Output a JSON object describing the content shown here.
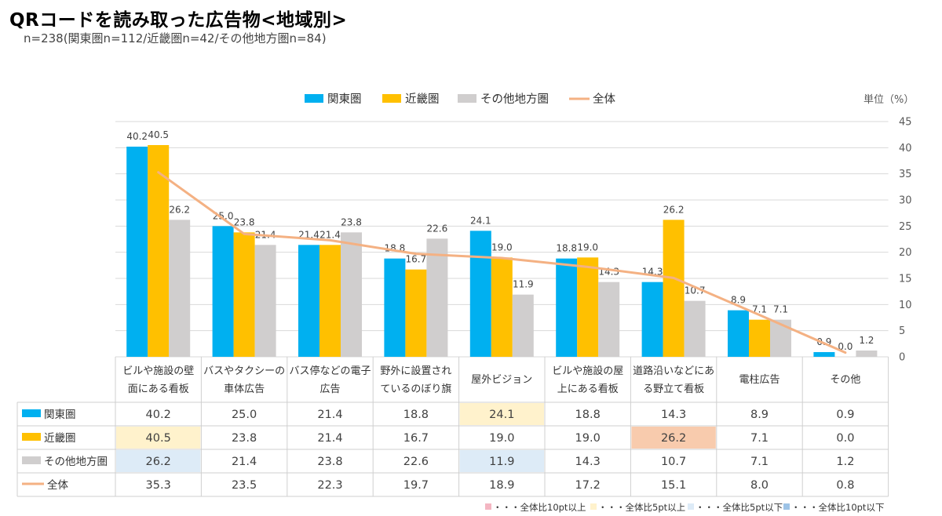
{
  "title": "QRコードを読み取った広告物<地域別>",
  "subtitle": "n=238(関東圏n=112/近畿圏n=42/その他地方圏n=84)",
  "chart_data": {
    "type": "bar",
    "unit_label": "単位（%）",
    "categories": [
      [
        "ビルや施設の壁",
        "面にある看板"
      ],
      [
        "バスやタクシーの",
        "車体広告"
      ],
      [
        "バス停などの電子",
        "広告"
      ],
      [
        "野外に設置され",
        "ているのぼり旗"
      ],
      [
        "屋外ビジョン"
      ],
      [
        "ビルや施設の屋",
        "上にある看板"
      ],
      [
        "道路沿いなどにあ",
        "る野立て看板"
      ],
      [
        "電柱広告"
      ],
      [
        "その他"
      ]
    ],
    "series": [
      {
        "name": "関東圏",
        "type": "bar",
        "color": "#00B0F0",
        "values": [
          40.2,
          25.0,
          21.4,
          18.8,
          24.1,
          18.8,
          14.3,
          8.9,
          0.9
        ]
      },
      {
        "name": "近畿圏",
        "type": "bar",
        "color": "#FFC000",
        "values": [
          40.5,
          23.8,
          21.4,
          16.7,
          19.0,
          19.0,
          26.2,
          7.1,
          0.0
        ]
      },
      {
        "name": "その他地方圏",
        "type": "bar",
        "color": "#D0CECE",
        "values": [
          26.2,
          21.4,
          23.8,
          22.6,
          11.9,
          14.3,
          10.7,
          7.1,
          1.2
        ]
      },
      {
        "name": "全体",
        "type": "line",
        "color": "#F4B183",
        "values": [
          35.3,
          23.5,
          22.3,
          19.7,
          18.9,
          17.2,
          15.1,
          8.0,
          0.8
        ]
      }
    ],
    "ylim": [
      0,
      45
    ],
    "yticks": [
      0,
      5,
      10,
      15,
      20,
      25,
      30,
      35,
      40,
      45
    ],
    "y_axis_side": "right",
    "grid": true,
    "legend_position": "top",
    "data_table": true,
    "highlights": [
      {
        "series": 0,
        "index": 4,
        "color": "#FFF2CC"
      },
      {
        "series": 1,
        "index": 0,
        "color": "#FFF2CC"
      },
      {
        "series": 1,
        "index": 6,
        "color": "#F8CBAD"
      },
      {
        "series": 2,
        "index": 0,
        "color": "#DDEBF7"
      },
      {
        "series": 2,
        "index": 4,
        "color": "#DDEBF7"
      }
    ],
    "highlight_legend": [
      {
        "color": "#F4B6C2",
        "label": "・・・全体比10pt以上"
      },
      {
        "color": "#FFF2CC",
        "label": "・・・全体比5pt以上"
      },
      {
        "color": "#DDEBF7",
        "label": "・・・全体比5pt以下"
      },
      {
        "color": "#9DC3E6",
        "label": "・・・全体比10pt以下"
      }
    ]
  }
}
